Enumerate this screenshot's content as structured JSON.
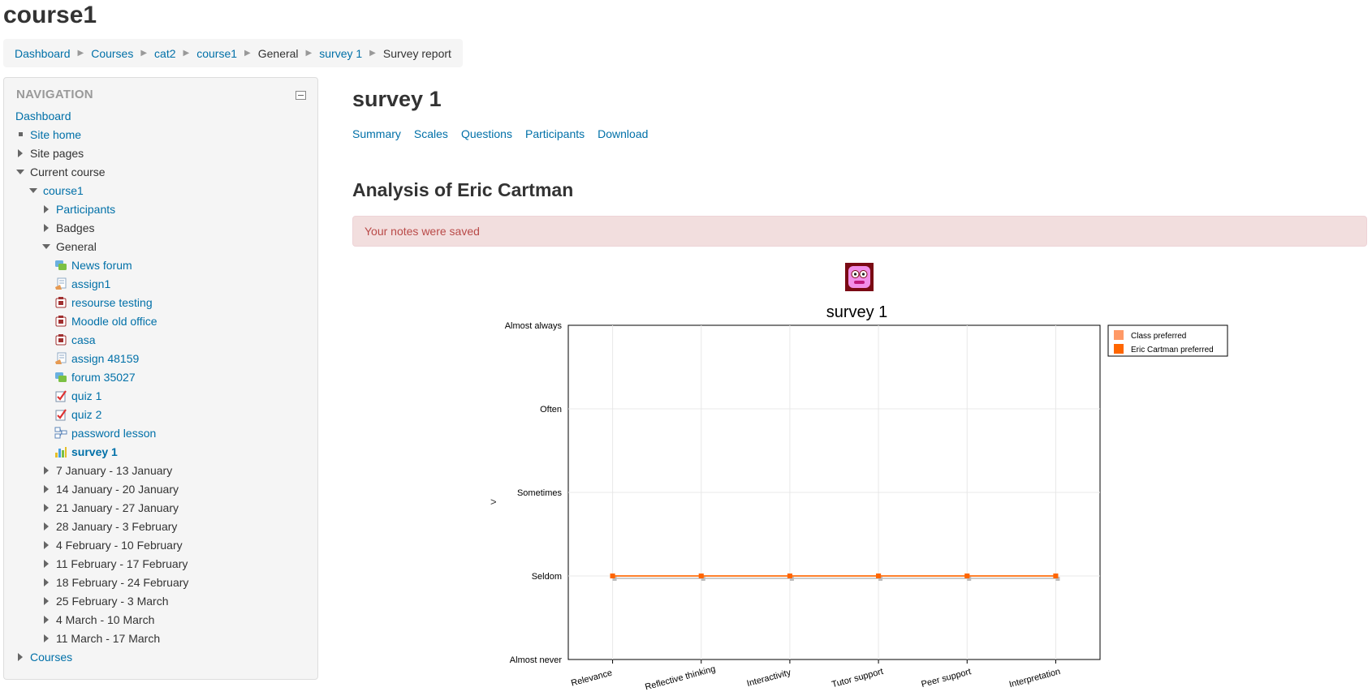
{
  "page": {
    "heading": "course1"
  },
  "breadcrumb": [
    {
      "label": "Dashboard",
      "link": true
    },
    {
      "label": "Courses",
      "link": true
    },
    {
      "label": "cat2",
      "link": true
    },
    {
      "label": "course1",
      "link": true
    },
    {
      "label": "General",
      "link": false
    },
    {
      "label": "survey 1",
      "link": true
    },
    {
      "label": "Survey report",
      "link": false
    }
  ],
  "navigation": {
    "title": "NAVIGATION",
    "items": [
      {
        "label": "Dashboard",
        "indent": 0,
        "marker": "none",
        "link": true
      },
      {
        "label": "Site home",
        "indent": 0,
        "marker": "square",
        "link": true
      },
      {
        "label": "Site pages",
        "indent": 0,
        "marker": "collapsed",
        "link": false
      },
      {
        "label": "Current course",
        "indent": 0,
        "marker": "expanded",
        "link": false
      },
      {
        "label": "course1",
        "indent": 1,
        "marker": "expanded",
        "link": true
      },
      {
        "label": "Participants",
        "indent": 2,
        "marker": "collapsed",
        "link": true
      },
      {
        "label": "Badges",
        "indent": 2,
        "marker": "collapsed",
        "link": false
      },
      {
        "label": "General",
        "indent": 2,
        "marker": "expanded",
        "link": false
      },
      {
        "label": "News forum",
        "indent": 3,
        "icon": "forum-icon",
        "link": true
      },
      {
        "label": "assign1",
        "indent": 3,
        "icon": "assignment-icon",
        "link": true
      },
      {
        "label": "resourse testing",
        "indent": 3,
        "icon": "resource-icon",
        "link": true
      },
      {
        "label": "Moodle old office",
        "indent": 3,
        "icon": "resource-icon",
        "link": true
      },
      {
        "label": "casa",
        "indent": 3,
        "icon": "resource-icon",
        "link": true
      },
      {
        "label": "assign 48159",
        "indent": 3,
        "icon": "assignment-icon",
        "link": true
      },
      {
        "label": "forum 35027",
        "indent": 3,
        "icon": "forum-icon",
        "link": true
      },
      {
        "label": "quiz 1",
        "indent": 3,
        "icon": "quiz-icon",
        "link": true
      },
      {
        "label": "quiz 2",
        "indent": 3,
        "icon": "quiz-icon",
        "link": true
      },
      {
        "label": "password lesson",
        "indent": 3,
        "icon": "lesson-icon",
        "link": true
      },
      {
        "label": "survey 1",
        "indent": 3,
        "icon": "survey-icon",
        "link": true,
        "active": true
      },
      {
        "label": "7 January - 13 January",
        "indent": 2,
        "marker": "collapsed",
        "link": false
      },
      {
        "label": "14 January - 20 January",
        "indent": 2,
        "marker": "collapsed",
        "link": false
      },
      {
        "label": "21 January - 27 January",
        "indent": 2,
        "marker": "collapsed",
        "link": false
      },
      {
        "label": "28 January - 3 February",
        "indent": 2,
        "marker": "collapsed",
        "link": false
      },
      {
        "label": "4 February - 10 February",
        "indent": 2,
        "marker": "collapsed",
        "link": false
      },
      {
        "label": "11 February - 17 February",
        "indent": 2,
        "marker": "collapsed",
        "link": false
      },
      {
        "label": "18 February - 24 February",
        "indent": 2,
        "marker": "collapsed",
        "link": false
      },
      {
        "label": "25 February - 3 March",
        "indent": 2,
        "marker": "collapsed",
        "link": false
      },
      {
        "label": "4 March - 10 March",
        "indent": 2,
        "marker": "collapsed",
        "link": false
      },
      {
        "label": "11 March - 17 March",
        "indent": 2,
        "marker": "collapsed",
        "link": false
      },
      {
        "label": "Courses",
        "indent": 0,
        "marker": "collapsed",
        "link": true
      }
    ]
  },
  "main": {
    "title": "survey 1",
    "tabs": [
      "Summary",
      "Scales",
      "Questions",
      "Participants",
      "Download"
    ],
    "analysis_title": "Analysis of Eric Cartman",
    "notice": "Your notes were saved",
    "stray_text": ">"
  },
  "colors": {
    "class_series": "#ff9966",
    "user_series": "#ff6600",
    "link": "#0070a8",
    "alert_bg": "#f2dede",
    "alert_text": "#b94a48"
  },
  "chart_data": {
    "type": "line",
    "title": "survey 1",
    "categories": [
      "Relevance",
      "Reflective thinking",
      "Interactivity",
      "Tutor support",
      "Peer support",
      "Interpretation"
    ],
    "y_tick_labels": [
      "Almost never",
      "Seldom",
      "Sometimes",
      "Often",
      "Almost always"
    ],
    "ylim": [
      1,
      5
    ],
    "grid": true,
    "legend_position": "top-right",
    "series": [
      {
        "name": "Class preferred",
        "values": [
          2,
          2,
          2,
          2,
          2,
          2
        ],
        "color": "#ff9966"
      },
      {
        "name": "Eric Cartman preferred",
        "values": [
          2,
          2,
          2,
          2,
          2,
          2
        ],
        "color": "#ff6600"
      }
    ]
  }
}
